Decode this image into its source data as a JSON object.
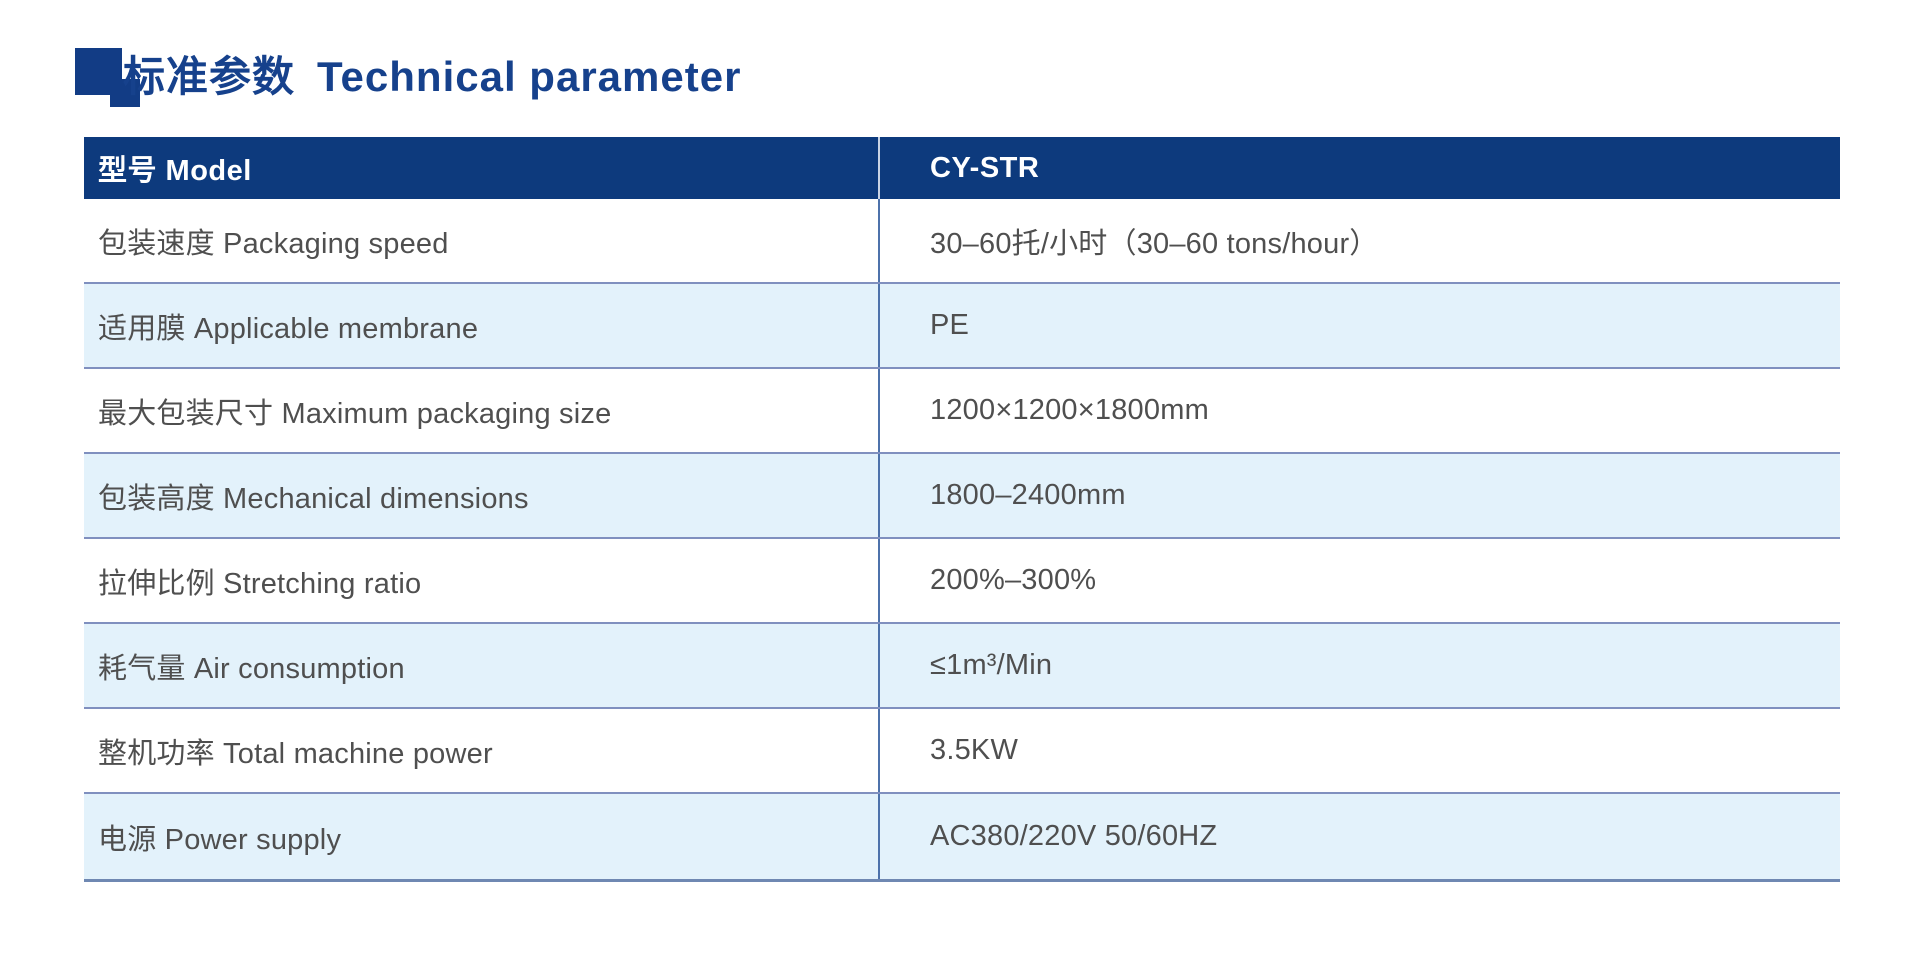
{
  "title": {
    "zh": "标准参数",
    "en": "Technical parameter",
    "color": "#16418c",
    "icon": "overlapping-squares-icon"
  },
  "table": {
    "header": {
      "model_label": "型号 Model",
      "model_value": "CY-STR",
      "bg_color": "#0d3a7d",
      "text_color": "#ffffff"
    },
    "rows": [
      {
        "label": "包装速度 Packaging speed",
        "value": "30–60托/小时（30–60 tons/hour）"
      },
      {
        "label": "适用膜 Applicable membrane",
        "value": "PE"
      },
      {
        "label": "最大包装尺寸 Maximum packaging size",
        "value": "1200×1200×1800mm"
      },
      {
        "label": "包装高度 Mechanical dimensions",
        "value": "1800–2400mm"
      },
      {
        "label": "拉伸比例 Stretching ratio",
        "value": "200%–300%"
      },
      {
        "label": "耗气量 Air consumption",
        "value": "≤1m³/Min"
      },
      {
        "label": "整机功率 Total machine power",
        "value": "3.5KW"
      },
      {
        "label": "电源 Power supply",
        "value": "AC380/220V 50/60HZ"
      }
    ],
    "colors": {
      "row_alt_bg": "#e3f2fb",
      "row_bg": "#ffffff",
      "separator": "#8090bf",
      "column_divider": "#4d72ab",
      "bottom_border": "#6f88b2",
      "cell_text": "#4f4f4f"
    }
  }
}
